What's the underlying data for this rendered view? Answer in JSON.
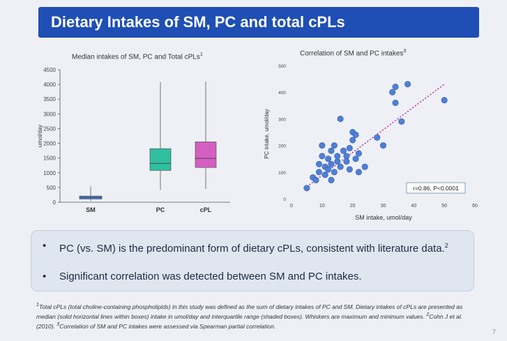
{
  "slide": {
    "title": "Dietary Intakes of SM, PC and total cPLs",
    "page_number": "7"
  },
  "box_chart": {
    "title": "Median intakes of SM, PC and Total cPLs",
    "title_sup": "1",
    "ylabel": "umol/day",
    "yticks": [
      "4500",
      "4000",
      "3500",
      "3000",
      "2500",
      "2000",
      "1500",
      "1000",
      "500",
      "0"
    ],
    "categories": [
      "SM",
      "PC",
      "cPL"
    ]
  },
  "scatter_chart": {
    "title": "Correlation of SM and PC intakes",
    "title_sup": "3",
    "ylabel": "PC intake, umol/day",
    "xlabel": "SM intake, umol/day",
    "yticks": [
      "500",
      "400",
      "300",
      "200",
      "100",
      "0"
    ],
    "xticks": [
      "0",
      "10",
      "20",
      "30",
      "40",
      "50",
      "60"
    ],
    "stat_label": "r=0.86, P<0.0001"
  },
  "chart_data": [
    {
      "type": "box",
      "title": "Median intakes of SM, PC and Total cPLs",
      "ylabel": "umol/day",
      "ylim": [
        0,
        4500
      ],
      "categories": [
        "SM",
        "PC",
        "cPL"
      ],
      "boxes": [
        {
          "name": "SM",
          "min": 40,
          "q1": 110,
          "median": 160,
          "q3": 210,
          "max": 540,
          "color": "#4a7bd0"
        },
        {
          "name": "PC",
          "min": 420,
          "q1": 1080,
          "median": 1320,
          "q3": 1820,
          "max": 4080,
          "color": "#2fbf9f"
        },
        {
          "name": "cPL",
          "min": 450,
          "q1": 1180,
          "median": 1490,
          "q3": 2050,
          "max": 4100,
          "color": "#d45fc0"
        }
      ]
    },
    {
      "type": "scatter",
      "title": "Correlation of SM and PC intakes",
      "xlabel": "SM intake, umol/day",
      "ylabel": "PC intake, umol/day",
      "xlim": [
        0,
        60
      ],
      "ylim": [
        0,
        500
      ],
      "trend_line": [
        [
          5,
          45
        ],
        [
          50,
          430
        ]
      ],
      "points": [
        [
          5,
          40
        ],
        [
          7,
          80
        ],
        [
          8,
          70
        ],
        [
          9,
          100
        ],
        [
          9,
          130
        ],
        [
          10,
          160
        ],
        [
          10,
          200
        ],
        [
          11,
          120
        ],
        [
          11,
          90
        ],
        [
          12,
          150
        ],
        [
          12,
          110
        ],
        [
          13,
          180
        ],
        [
          13,
          70
        ],
        [
          13,
          130
        ],
        [
          14,
          100
        ],
        [
          14,
          200
        ],
        [
          15,
          140
        ],
        [
          15,
          160
        ],
        [
          16,
          120
        ],
        [
          17,
          180
        ],
        [
          18,
          160
        ],
        [
          18,
          140
        ],
        [
          19,
          110
        ],
        [
          19,
          190
        ],
        [
          20,
          220
        ],
        [
          20,
          250
        ],
        [
          21,
          240
        ],
        [
          21,
          150
        ],
        [
          22,
          170
        ],
        [
          22,
          100
        ],
        [
          16,
          300
        ],
        [
          24,
          120
        ],
        [
          28,
          230
        ],
        [
          30,
          200
        ],
        [
          33,
          400
        ],
        [
          34,
          360
        ],
        [
          34,
          420
        ],
        [
          36,
          290
        ],
        [
          38,
          430
        ],
        [
          50,
          370
        ]
      ]
    }
  ]
}
